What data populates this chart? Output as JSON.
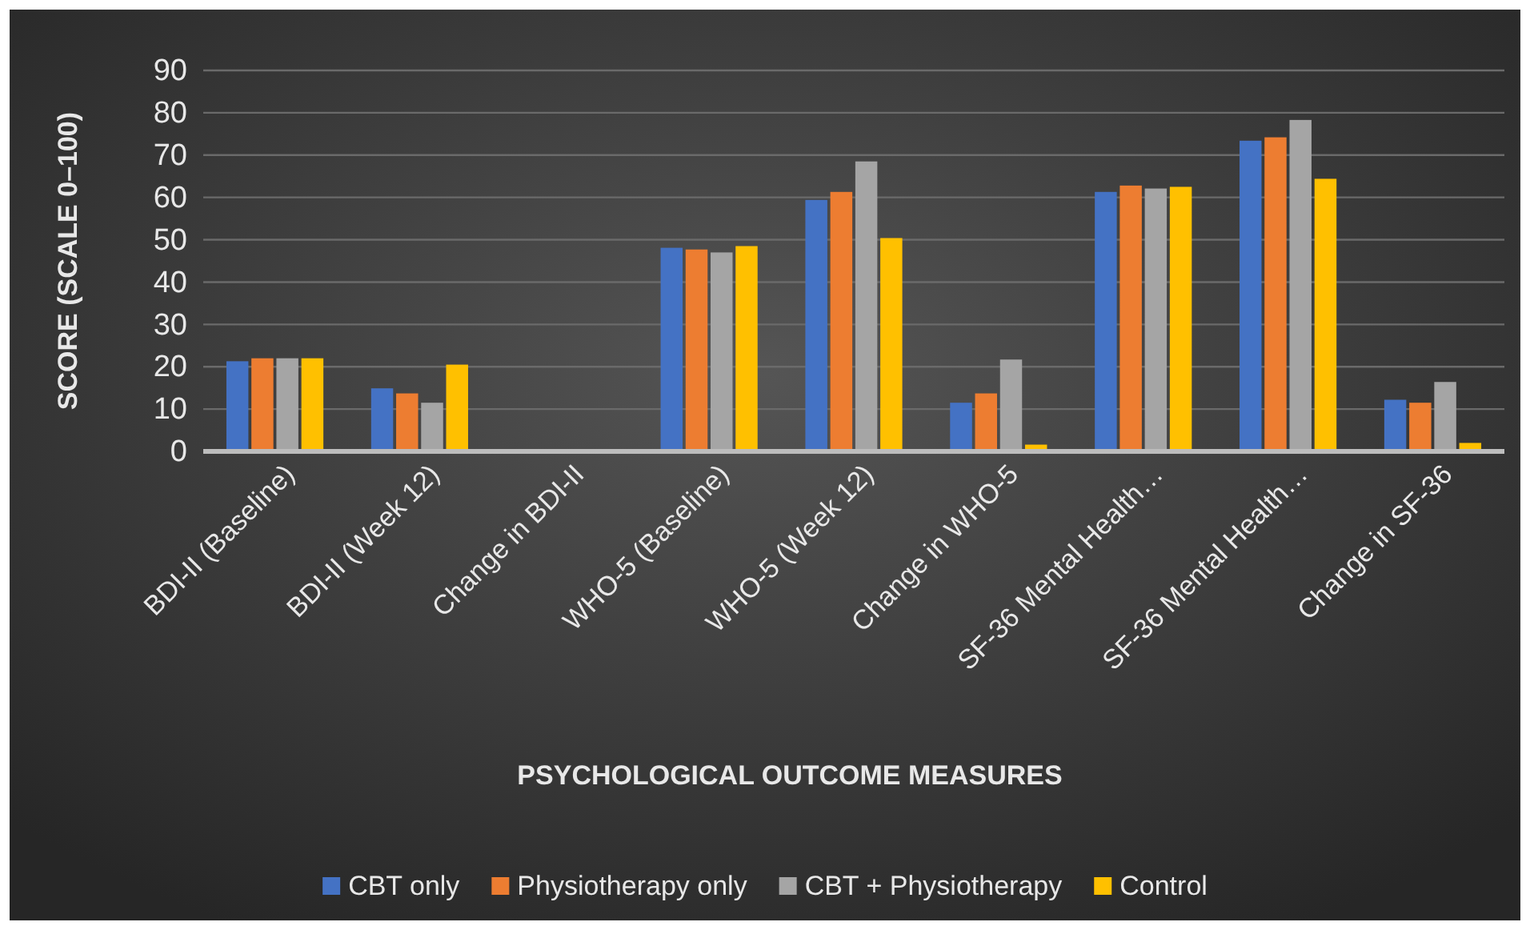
{
  "chart_data": {
    "type": "bar",
    "xlabel": "PSYCHOLOGICAL OUTCOME MEASURES",
    "ylabel": "SCORE (SCALE 0–100)",
    "categories": [
      "BDI-II (Baseline)",
      "BDI-II (Week 12)",
      "Change in BDI-II",
      "WHO-5 (Baseline)",
      "WHO-5 (Week 12)",
      "Change in WHO-5",
      "SF-36 Mental Health…",
      "SF-36 Mental Health…",
      "Change in SF-36"
    ],
    "series": [
      {
        "name": "CBT only",
        "color": "#4472c4",
        "values": [
          21.3,
          14.9,
          null,
          48.1,
          59.4,
          11.5,
          61.3,
          73.4,
          12.2
        ]
      },
      {
        "name": "Physiotherapy only",
        "color": "#ed7d31",
        "values": [
          22.0,
          13.7,
          null,
          47.7,
          61.3,
          13.7,
          62.8,
          74.2,
          11.5
        ]
      },
      {
        "name": "CBT + Physiotherapy",
        "color": "#a5a5a5",
        "values": [
          22.0,
          11.5,
          null,
          47.0,
          68.5,
          21.7,
          62.1,
          78.3,
          16.4
        ]
      },
      {
        "name": "Control",
        "color": "#ffc000",
        "values": [
          22.0,
          20.5,
          null,
          48.5,
          50.4,
          1.6,
          62.5,
          64.4,
          2.0
        ]
      }
    ],
    "ylim": [
      0,
      90
    ],
    "yticks": [
      0,
      10,
      20,
      30,
      40,
      50,
      60,
      70,
      80,
      90
    ],
    "grid": "y",
    "legend": "bottom"
  }
}
